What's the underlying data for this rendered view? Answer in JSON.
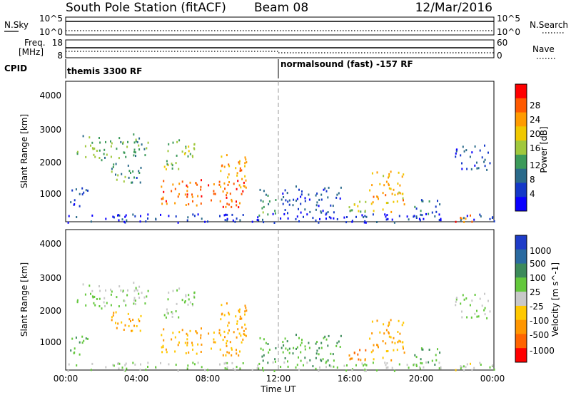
{
  "header": {
    "station": "South Pole Station (fitACF)",
    "beam": "Beam 08",
    "date": "12/Mar/2016"
  },
  "strips": {
    "nsky_label": "N.Sky",
    "nsearch_label": "N.Search",
    "nsky_ticks": [
      "10^5",
      "10^0"
    ],
    "nsearch_ticks": [
      "10^5",
      "10^0"
    ],
    "freq_label_1": "Freq.",
    "freq_label_2": "[MHz]",
    "freq_ticks": [
      "18",
      "8"
    ],
    "nave_label": "Nave",
    "nave_ticks": [
      "60",
      "0"
    ],
    "cpid_label": "CPID",
    "cpid_left": "themis 3300 RF",
    "cpid_right": "normalsound (fast) -157 RF"
  },
  "panels": {
    "ylabel": "Slant Range [km]",
    "yticks": [
      "4000",
      "3000",
      "2000",
      "1000"
    ],
    "xticks": [
      "00:00",
      "04:00",
      "08:00",
      "12:00",
      "16:00",
      "20:00",
      "00:00"
    ],
    "xlabel": "Time UT"
  },
  "power_scale": {
    "label": "Power [dB]",
    "ticks": [
      "28",
      "24",
      "20",
      "16",
      "12",
      "8",
      "4"
    ],
    "colors": [
      "#ff0000",
      "#ff5a00",
      "#ff9b00",
      "#f0c800",
      "#a0c83c",
      "#3c9a5a",
      "#2a6a8a",
      "#1438c8",
      "#0a00ff"
    ]
  },
  "velocity_scale": {
    "label": "Velocity [m s^-1]",
    "ticks": [
      "1000",
      "500",
      "100",
      "25",
      "-25",
      "-100",
      "-500",
      "-1000"
    ],
    "colors": [
      "#1e3cc8",
      "#2a6aa0",
      "#3c8a5a",
      "#64c83c",
      "#c8c8c8",
      "#ffc800",
      "#ff9600",
      "#ff6400",
      "#ff0000"
    ]
  },
  "chart_data": {
    "type": "heatmap",
    "title": "South Pole Station (fitACF)",
    "xlabel": "Time UT",
    "ylabel": "Slant Range [km]",
    "x_range_hours": [
      0,
      24
    ],
    "ylim": [
      180,
      4500
    ],
    "scatter_regions": [
      {
        "t": [
          0.6,
          4.6
        ],
        "r": [
          2100,
          2900
        ],
        "power": 14,
        "velocity": 25
      },
      {
        "t": [
          2.0,
          4.2
        ],
        "r": [
          1400,
          2000
        ],
        "power": 12,
        "velocity": -100
      },
      {
        "t": [
          0.2,
          1.3
        ],
        "r": [
          650,
          1300
        ],
        "power": 8,
        "velocity": 100
      },
      {
        "t": [
          5.5,
          7.2
        ],
        "r": [
          1800,
          2800
        ],
        "power": 16,
        "velocity": 25
      },
      {
        "t": [
          5.3,
          10.0
        ],
        "r": [
          650,
          1500
        ],
        "power": 26,
        "velocity": -100
      },
      {
        "t": [
          8.5,
          10.2
        ],
        "r": [
          1200,
          2300
        ],
        "power": 22,
        "velocity": -100
      },
      {
        "t": [
          10.8,
          11.8
        ],
        "r": [
          400,
          1300
        ],
        "power": 14,
        "velocity": 100
      },
      {
        "t": [
          12.0,
          15.5
        ],
        "r": [
          300,
          1300
        ],
        "power": 8,
        "velocity": 100
      },
      {
        "t": [
          17.0,
          19.0
        ],
        "r": [
          500,
          1800
        ],
        "power": 22,
        "velocity": -100
      },
      {
        "t": [
          15.8,
          17.0
        ],
        "r": [
          300,
          900
        ],
        "power": 16,
        "velocity": -500
      },
      {
        "t": [
          19.5,
          21.0
        ],
        "r": [
          300,
          900
        ],
        "power": 10,
        "velocity": 100
      },
      {
        "t": [
          21.8,
          23.8
        ],
        "r": [
          1800,
          2600
        ],
        "power": 8,
        "velocity": 25
      },
      {
        "t": [
          21.6,
          22.8
        ],
        "r": [
          200,
          500
        ],
        "power": 26,
        "velocity": -25
      },
      {
        "t": [
          0.0,
          24.0
        ],
        "r": [
          180,
          450
        ],
        "power": 6,
        "velocity": 25
      }
    ]
  }
}
